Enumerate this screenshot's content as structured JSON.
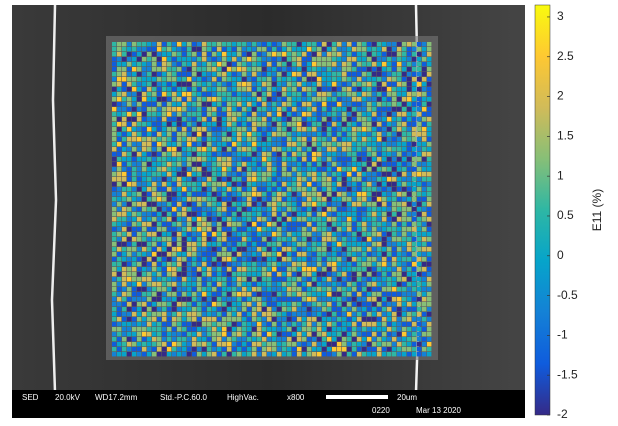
{
  "colorbar": {
    "label": "E11 (%)",
    "lim": [
      -2,
      3.15
    ],
    "ticks": [
      3,
      2.5,
      2,
      1.5,
      1,
      0.5,
      0,
      -0.5,
      -1,
      -1.5,
      -2
    ],
    "colors": [
      "#352a87",
      "#0f5cdd",
      "#1481d6",
      "#06a4ca",
      "#2eb7a4",
      "#87bf77",
      "#d1bb59",
      "#fec832",
      "#f9fb0e"
    ]
  },
  "info_bar": {
    "detector": "SED",
    "voltage": "20.0kV",
    "wd": "WD17.2mm",
    "mode": "Std.-P.C.60.0",
    "vacuum": "HighVac.",
    "magnification": "x800",
    "scale": "20um",
    "code": "0220",
    "date": "Mar 13 2020"
  }
}
